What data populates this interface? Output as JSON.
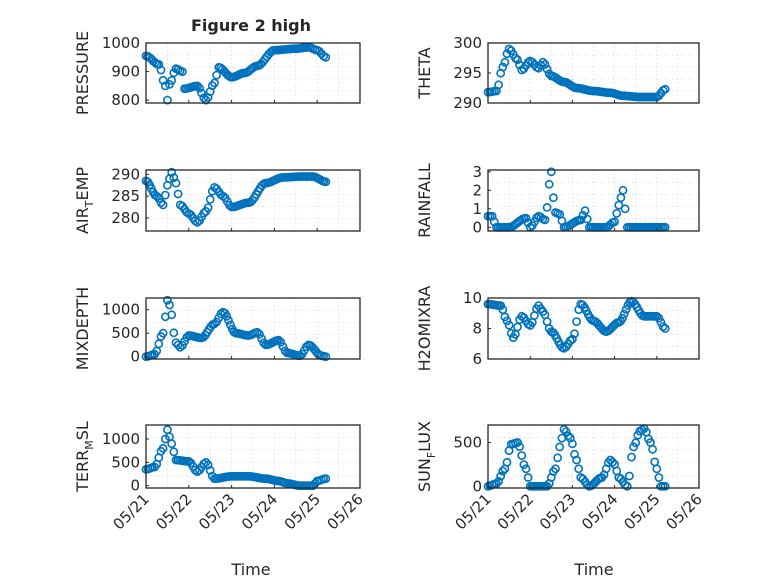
{
  "figure": {
    "title": "Figure 2 high",
    "marker_color": "#0072BD"
  },
  "chart_data": [
    {
      "type": "scatter",
      "ylabel": "PRESSURE",
      "ylim": [
        790,
        1000
      ],
      "yticks": [
        800,
        900,
        1000
      ],
      "xlim": [
        0,
        5
      ],
      "xticks": [
        "05/21",
        "05/22",
        "05/23",
        "05/24",
        "05/25",
        "05/26"
      ],
      "series_key": [
        [
          0,
          955
        ],
        [
          0.3,
          925
        ],
        [
          0.45,
          850
        ],
        [
          0.5,
          800
        ],
        [
          0.55,
          855
        ],
        [
          0.7,
          910
        ],
        [
          0.85,
          900
        ],
        [
          0.9,
          840
        ],
        [
          1.2,
          850
        ],
        [
          1.4,
          800
        ],
        [
          1.6,
          860
        ],
        [
          1.7,
          915
        ],
        [
          2.0,
          880
        ],
        [
          2.3,
          895
        ],
        [
          2.6,
          920
        ],
        [
          3.0,
          975
        ],
        [
          3.5,
          980
        ],
        [
          3.8,
          985
        ],
        [
          4.0,
          975
        ],
        [
          4.2,
          950
        ]
      ]
    },
    {
      "type": "scatter",
      "ylabel": "THETA",
      "ylim": [
        290,
        300
      ],
      "yticks": [
        290,
        295,
        300
      ],
      "xlim": [
        0,
        5
      ],
      "xticks": [
        "05/21",
        "05/22",
        "05/23",
        "05/24",
        "05/25",
        "05/26"
      ],
      "series_key": [
        [
          0,
          291.8
        ],
        [
          0.2,
          292
        ],
        [
          0.35,
          296
        ],
        [
          0.5,
          299
        ],
        [
          0.7,
          297.2
        ],
        [
          0.8,
          295.5
        ],
        [
          1.0,
          297
        ],
        [
          1.2,
          295.8
        ],
        [
          1.3,
          296.8
        ],
        [
          1.5,
          294.5
        ],
        [
          1.8,
          293.5
        ],
        [
          2.1,
          292.5
        ],
        [
          2.5,
          292
        ],
        [
          2.9,
          291.7
        ],
        [
          3.2,
          291.2
        ],
        [
          3.6,
          291
        ],
        [
          4.0,
          291
        ],
        [
          4.2,
          292.3
        ]
      ]
    },
    {
      "type": "scatter",
      "ylabel": "AIR_TEMP",
      "ylim": [
        277,
        291
      ],
      "yticks": [
        280,
        285,
        290
      ],
      "xlim": [
        0,
        5
      ],
      "xticks": [
        "05/21",
        "05/22",
        "05/23",
        "05/24",
        "05/25",
        "05/26"
      ],
      "series_key": [
        [
          0,
          288.5
        ],
        [
          0.25,
          285
        ],
        [
          0.4,
          283
        ],
        [
          0.5,
          287.5
        ],
        [
          0.6,
          290.5
        ],
        [
          0.7,
          288
        ],
        [
          0.8,
          283
        ],
        [
          1.0,
          281
        ],
        [
          1.2,
          279
        ],
        [
          1.4,
          281.5
        ],
        [
          1.6,
          287
        ],
        [
          1.8,
          285
        ],
        [
          2.0,
          282.5
        ],
        [
          2.4,
          283.5
        ],
        [
          2.8,
          288
        ],
        [
          3.2,
          289.3
        ],
        [
          3.6,
          289.5
        ],
        [
          3.9,
          289.5
        ],
        [
          4.2,
          288.3
        ]
      ]
    },
    {
      "type": "scatter",
      "ylabel": "RAINFALL",
      "ylim": [
        -0.2,
        3.1
      ],
      "yticks": [
        0,
        1,
        2,
        3
      ],
      "xlim": [
        0,
        5
      ],
      "xticks": [
        "05/21",
        "05/22",
        "05/23",
        "05/24",
        "05/25",
        "05/26"
      ],
      "series_key": [
        [
          0,
          0.6
        ],
        [
          0.1,
          0.6
        ],
        [
          0.2,
          0
        ],
        [
          0.5,
          0
        ],
        [
          0.9,
          0.5
        ],
        [
          1.0,
          0
        ],
        [
          1.2,
          0.6
        ],
        [
          1.35,
          0.4
        ],
        [
          1.5,
          3
        ],
        [
          1.55,
          1.6
        ],
        [
          1.6,
          0.8
        ],
        [
          1.7,
          0.7
        ],
        [
          1.8,
          0
        ],
        [
          2.2,
          0.4
        ],
        [
          2.3,
          0.9
        ],
        [
          2.4,
          0
        ],
        [
          2.8,
          0
        ],
        [
          3.0,
          0.3
        ],
        [
          3.1,
          1.2
        ],
        [
          3.2,
          2.0
        ],
        [
          3.3,
          0
        ],
        [
          4.2,
          0
        ]
      ]
    },
    {
      "type": "scatter",
      "ylabel": "MIXDEPTH",
      "ylim": [
        -50,
        1250
      ],
      "yticks": [
        0,
        500,
        1000
      ],
      "xlim": [
        0,
        5
      ],
      "xticks": [
        "05/21",
        "05/22",
        "05/23",
        "05/24",
        "05/25",
        "05/26"
      ],
      "series_key": [
        [
          0,
          0
        ],
        [
          0.2,
          50
        ],
        [
          0.4,
          500
        ],
        [
          0.5,
          1200
        ],
        [
          0.55,
          1100
        ],
        [
          0.7,
          300
        ],
        [
          0.8,
          200
        ],
        [
          1.0,
          450
        ],
        [
          1.3,
          400
        ],
        [
          1.6,
          700
        ],
        [
          1.8,
          950
        ],
        [
          2.1,
          500
        ],
        [
          2.4,
          450
        ],
        [
          2.6,
          520
        ],
        [
          2.8,
          250
        ],
        [
          3.1,
          350
        ],
        [
          3.3,
          80
        ],
        [
          3.6,
          20
        ],
        [
          3.8,
          250
        ],
        [
          4.1,
          20
        ],
        [
          4.2,
          0
        ]
      ]
    },
    {
      "type": "scatter",
      "ylabel": "H2OMIXRA",
      "ylim": [
        6,
        10
      ],
      "yticks": [
        6,
        8,
        10
      ],
      "xlim": [
        0,
        5
      ],
      "xticks": [
        "05/21",
        "05/22",
        "05/23",
        "05/24",
        "05/25",
        "05/26"
      ],
      "series_key": [
        [
          0,
          9.6
        ],
        [
          0.3,
          9.5
        ],
        [
          0.45,
          8.5
        ],
        [
          0.6,
          7.4
        ],
        [
          0.8,
          8.8
        ],
        [
          1.0,
          8.2
        ],
        [
          1.2,
          9.5
        ],
        [
          1.3,
          9.1
        ],
        [
          1.5,
          7.8
        ],
        [
          1.8,
          6.7
        ],
        [
          2.0,
          7.3
        ],
        [
          2.2,
          9.6
        ],
        [
          2.5,
          8.5
        ],
        [
          2.8,
          7.8
        ],
        [
          3.1,
          8.4
        ],
        [
          3.4,
          9.8
        ],
        [
          3.7,
          8.8
        ],
        [
          4.0,
          8.8
        ],
        [
          4.2,
          8.0
        ]
      ]
    },
    {
      "type": "scatter",
      "ylabel": "TERR_MSL",
      "ylim": [
        -50,
        1300
      ],
      "yticks": [
        0,
        500,
        1000
      ],
      "xlim": [
        0,
        5
      ],
      "xticks": [
        "05/21",
        "05/22",
        "05/23",
        "05/24",
        "05/25",
        "05/26"
      ],
      "series_key": [
        [
          0,
          350
        ],
        [
          0.2,
          400
        ],
        [
          0.4,
          800
        ],
        [
          0.5,
          1200
        ],
        [
          0.6,
          900
        ],
        [
          0.7,
          550
        ],
        [
          1.0,
          520
        ],
        [
          1.2,
          300
        ],
        [
          1.4,
          500
        ],
        [
          1.6,
          150
        ],
        [
          2.0,
          200
        ],
        [
          2.4,
          200
        ],
        [
          2.8,
          150
        ],
        [
          3.1,
          100
        ],
        [
          3.3,
          50
        ],
        [
          3.6,
          0
        ],
        [
          3.9,
          0
        ],
        [
          4.0,
          100
        ],
        [
          4.2,
          150
        ]
      ]
    },
    {
      "type": "scatter",
      "ylabel": "SUN_FLUX",
      "ylim": [
        -20,
        700
      ],
      "yticks": [
        0,
        500
      ],
      "xlim": [
        0,
        5
      ],
      "xticks": [
        "05/21",
        "05/22",
        "05/23",
        "05/24",
        "05/25",
        "05/26"
      ],
      "series_key": [
        [
          0,
          0
        ],
        [
          0.2,
          30
        ],
        [
          0.4,
          200
        ],
        [
          0.55,
          480
        ],
        [
          0.7,
          500
        ],
        [
          0.9,
          200
        ],
        [
          1.0,
          0
        ],
        [
          1.4,
          0
        ],
        [
          1.6,
          200
        ],
        [
          1.7,
          450
        ],
        [
          1.8,
          650
        ],
        [
          1.95,
          550
        ],
        [
          2.1,
          300
        ],
        [
          2.2,
          100
        ],
        [
          2.4,
          0
        ],
        [
          2.7,
          100
        ],
        [
          2.9,
          300
        ],
        [
          3.0,
          250
        ],
        [
          3.1,
          100
        ],
        [
          3.3,
          0
        ],
        [
          3.45,
          450
        ],
        [
          3.6,
          630
        ],
        [
          3.7,
          660
        ],
        [
          3.85,
          500
        ],
        [
          4.0,
          200
        ],
        [
          4.1,
          0
        ],
        [
          4.2,
          0
        ]
      ]
    }
  ],
  "axis_xlabel": "Time"
}
